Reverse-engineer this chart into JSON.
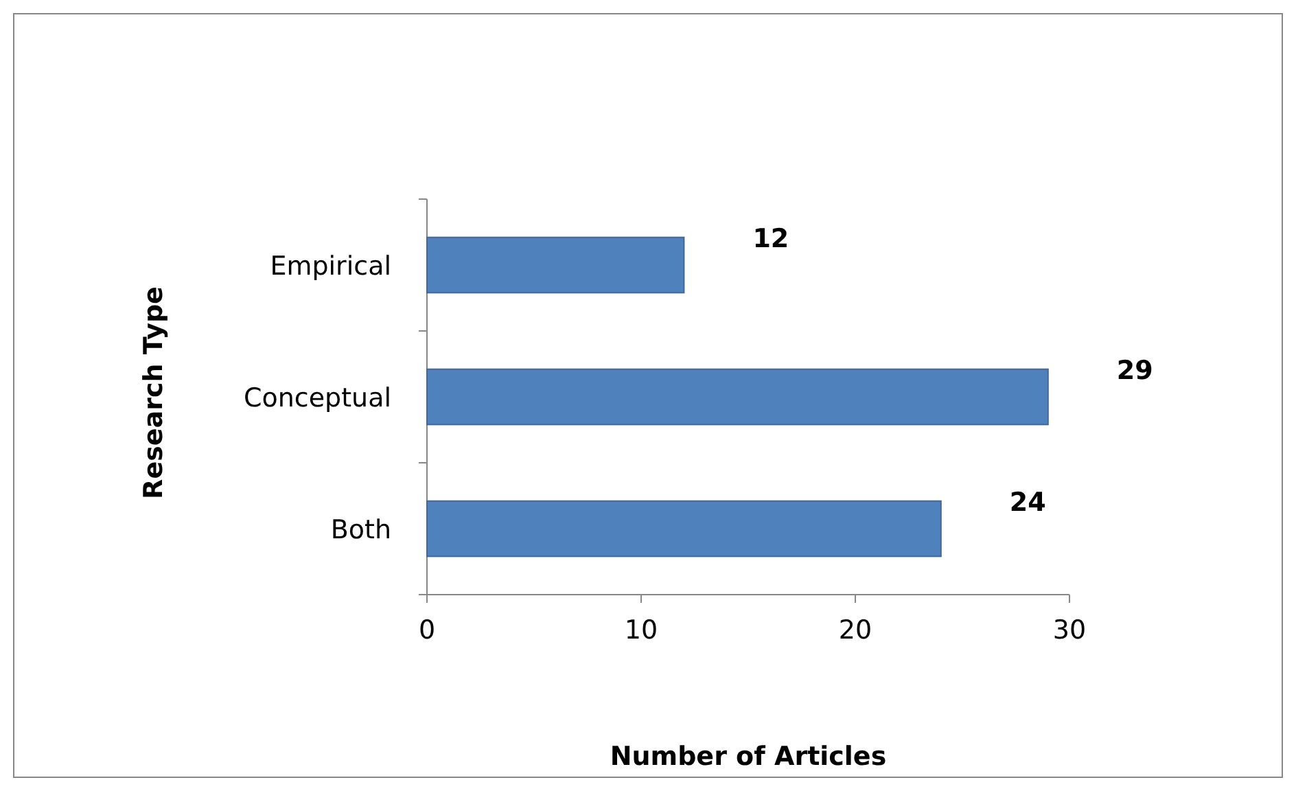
{
  "chart_data": {
    "type": "bar",
    "orientation": "horizontal",
    "categories": [
      "Empirical",
      "Conceptual",
      "Both"
    ],
    "values": [
      12,
      29,
      24
    ],
    "color": "#4f81bd",
    "xlabel": "Number of Articles",
    "ylabel": "Research Type",
    "xlim": [
      0,
      30
    ],
    "xticks": [
      0,
      10,
      20,
      30
    ],
    "data_labels": true,
    "grid": false
  }
}
